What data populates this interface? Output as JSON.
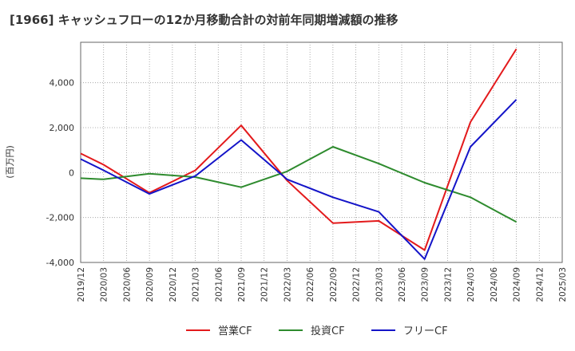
{
  "chart_data": {
    "type": "line",
    "title": "[1966]  キャッシュフローの12か月移動合計の対前年同期増減額の推移",
    "ylabel": "(百万円)",
    "xlabel": "",
    "ylim": [
      -4000,
      5800
    ],
    "yticks": [
      -4000,
      -2000,
      0,
      2000,
      4000
    ],
    "ytick_labels": [
      "-4,000",
      "-2,000",
      "0",
      "2,000",
      "4,000"
    ],
    "x_tick_labels": [
      "2019/12",
      "2020/03",
      "2020/06",
      "2020/09",
      "2020/12",
      "2021/03",
      "2021/06",
      "2021/09",
      "2021/12",
      "2022/03",
      "2022/06",
      "2022/09",
      "2022/12",
      "2023/03",
      "2023/06",
      "2023/09",
      "2023/12",
      "2024/03",
      "2024/06",
      "2024/09",
      "2024/12",
      "2025/03"
    ],
    "grid": true,
    "legend_position": "bottom",
    "series": [
      {
        "name": "営業CF",
        "color": "#e31a1c",
        "points": [
          [
            0,
            850
          ],
          [
            1,
            350
          ],
          [
            3,
            -900
          ],
          [
            5,
            100
          ],
          [
            7,
            2100
          ],
          [
            9,
            -350
          ],
          [
            11,
            -2250
          ],
          [
            13,
            -2150
          ],
          [
            15,
            -3450
          ],
          [
            17,
            2250
          ],
          [
            19,
            5500
          ]
        ]
      },
      {
        "name": "投資CF",
        "color": "#2e8b2e",
        "points": [
          [
            0,
            -250
          ],
          [
            1,
            -300
          ],
          [
            3,
            -50
          ],
          [
            5,
            -200
          ],
          [
            7,
            -650
          ],
          [
            9,
            50
          ],
          [
            11,
            1150
          ],
          [
            13,
            400
          ],
          [
            15,
            -450
          ],
          [
            17,
            -1100
          ],
          [
            19,
            -2200
          ]
        ]
      },
      {
        "name": "フリーCF",
        "color": "#1414c8",
        "points": [
          [
            0,
            600
          ],
          [
            1,
            100
          ],
          [
            3,
            -950
          ],
          [
            5,
            -150
          ],
          [
            7,
            1450
          ],
          [
            9,
            -300
          ],
          [
            11,
            -1100
          ],
          [
            13,
            -1750
          ],
          [
            15,
            -3850
          ],
          [
            17,
            1150
          ],
          [
            19,
            3250
          ]
        ]
      }
    ]
  }
}
